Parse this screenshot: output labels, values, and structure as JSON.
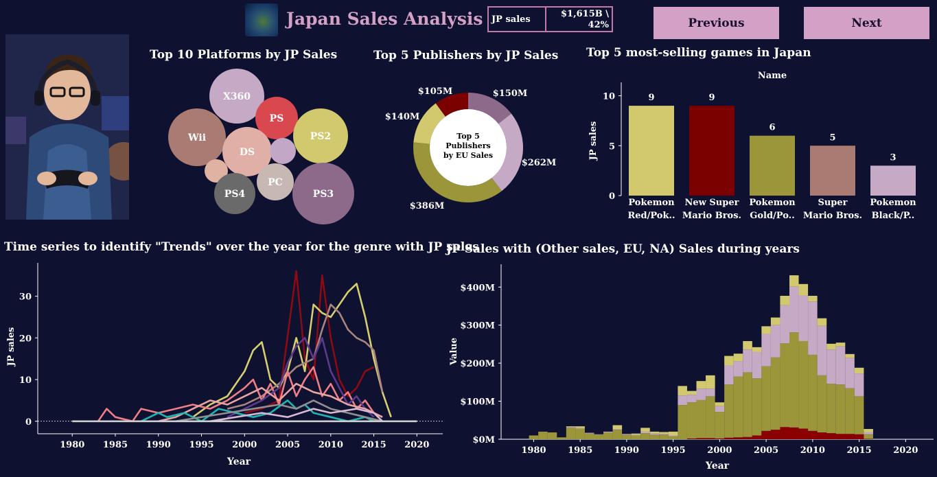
{
  "header": {
    "title": "Japan Sales Analysis",
    "kpi_label": "JP sales",
    "kpi_value_line1": "$1,615B \\",
    "kpi_value_line2": "42%",
    "prev_label": "Previous",
    "next_label": "Next"
  },
  "titles": {
    "platforms": "Top 10 Platforms by JP Sales",
    "publishers": "Top 5 Publishers by JP Sales",
    "games": "Top 5 most-selling games in Japan",
    "trends": "Time series to identify \"Trends\" over the year for the genre with JP sales",
    "yearly": "JP Sales with (Other sales, EU, NA) Sales during years"
  },
  "colors": {
    "background": "#0f1130",
    "button": "#d3a1c6",
    "kpi_border": "#c27aa8"
  },
  "chart_data": [
    {
      "id": "platforms",
      "type": "bubble",
      "items": [
        {
          "label": "X360",
          "color": "#c6a9c4"
        },
        {
          "label": "PS",
          "color": "#d9484f"
        },
        {
          "label": "Wii",
          "color": "#a97b73"
        },
        {
          "label": "DS",
          "color": "#e0b0a6"
        },
        {
          "label": "",
          "color": "#c3a7c7"
        },
        {
          "label": "PS2",
          "color": "#d2c96f"
        },
        {
          "label": "",
          "color": "#e0b2a2"
        },
        {
          "label": "PC",
          "color": "#c8b8b4"
        },
        {
          "label": "PS4",
          "color": "#6a6a6a"
        },
        {
          "label": "PS3",
          "color": "#8e6a8a"
        }
      ]
    },
    {
      "id": "publishers",
      "type": "donut",
      "center_text": [
        "Top 5",
        "Publishers",
        "by EU Sales"
      ],
      "slices": [
        {
          "value": 150,
          "label": "$150M",
          "color": "#8e6a8a"
        },
        {
          "value": 262,
          "label": "$262M",
          "color": "#c6a9c4"
        },
        {
          "value": 386,
          "label": "$386M",
          "color": "#9b963a"
        },
        {
          "value": 140,
          "label": "$140M",
          "color": "#d2c96f"
        },
        {
          "value": 105,
          "label": "$105M",
          "color": "#7b0000"
        }
      ]
    },
    {
      "id": "games",
      "type": "bar",
      "header": "Name",
      "ylabel": "JP sales",
      "ylim": [
        0,
        11
      ],
      "yticks": [
        0,
        5,
        10
      ],
      "categories": [
        [
          "Pokemon",
          "Red/Pok.."
        ],
        [
          "New Super",
          "Mario Bros."
        ],
        [
          "Pokemon",
          "Gold/Po.."
        ],
        [
          "Super",
          "Mario Bros."
        ],
        [
          "Pokemon",
          "Black/P.."
        ]
      ],
      "values": [
        9,
        9,
        6,
        5,
        3
      ],
      "colors": [
        "#d2c96f",
        "#7b0000",
        "#9b963a",
        "#a97b73",
        "#c6a9c4"
      ]
    },
    {
      "id": "trends",
      "type": "line",
      "xlabel": "Year",
      "ylabel": "JP sales",
      "xlim": [
        1976,
        2023
      ],
      "ylim": [
        -3,
        38
      ],
      "xticks": [
        1980,
        1985,
        1990,
        1995,
        2000,
        2005,
        2010,
        2015,
        2020
      ],
      "yticks": [
        0,
        10,
        20,
        30
      ],
      "series": [
        {
          "color": "#8b0a14",
          "points": [
            [
              2000,
              2
            ],
            [
              2002,
              3
            ],
            [
              2004,
              5
            ],
            [
              2006,
              36
            ],
            [
              2007,
              15
            ],
            [
              2008,
              10
            ],
            [
              2009,
              35
            ],
            [
              2010,
              20
            ],
            [
              2011,
              10
            ],
            [
              2012,
              6
            ],
            [
              2013,
              8
            ],
            [
              2014,
              12
            ],
            [
              2015,
              13
            ]
          ]
        },
        {
          "color": "#d6cf6f",
          "points": [
            [
              1994,
              1
            ],
            [
              1996,
              4
            ],
            [
              1998,
              6
            ],
            [
              2000,
              12
            ],
            [
              2001,
              17
            ],
            [
              2002,
              19
            ],
            [
              2003,
              10
            ],
            [
              2004,
              8
            ],
            [
              2005,
              12
            ],
            [
              2006,
              20
            ],
            [
              2007,
              12
            ],
            [
              2008,
              28
            ],
            [
              2009,
              26
            ],
            [
              2010,
              25
            ],
            [
              2011,
              28
            ],
            [
              2012,
              31
            ],
            [
              2013,
              33
            ],
            [
              2014,
              25
            ],
            [
              2015,
              15
            ],
            [
              2016,
              7
            ],
            [
              2017,
              1
            ]
          ]
        },
        {
          "color": "#a8857e",
          "points": [
            [
              1998,
              3
            ],
            [
              2000,
              4
            ],
            [
              2002,
              6
            ],
            [
              2004,
              9
            ],
            [
              2006,
              13
            ],
            [
              2008,
              15
            ],
            [
              2009,
              22
            ],
            [
              2010,
              28
            ],
            [
              2011,
              26
            ],
            [
              2012,
              22
            ],
            [
              2013,
              20
            ],
            [
              2014,
              19
            ],
            [
              2015,
              17
            ],
            [
              2016,
              7
            ]
          ]
        },
        {
          "color": "#ef7f86",
          "points": [
            [
              1983,
              0
            ],
            [
              1984,
              3
            ],
            [
              1985,
              1
            ],
            [
              1987,
              0
            ],
            [
              1988,
              3
            ],
            [
              1990,
              2
            ],
            [
              1992,
              3
            ],
            [
              1994,
              4
            ],
            [
              1996,
              3
            ],
            [
              1998,
              5
            ],
            [
              2000,
              8
            ],
            [
              2001,
              10
            ],
            [
              2002,
              5
            ],
            [
              2003,
              9
            ],
            [
              2004,
              4
            ],
            [
              2005,
              12
            ],
            [
              2006,
              6
            ],
            [
              2007,
              10
            ],
            [
              2008,
              13
            ],
            [
              2009,
              6
            ],
            [
              2010,
              9
            ],
            [
              2011,
              5
            ],
            [
              2012,
              7
            ],
            [
              2013,
              3
            ],
            [
              2014,
              5
            ],
            [
              2015,
              2
            ],
            [
              2016,
              1
            ]
          ]
        },
        {
          "color": "#5b3a8a",
          "points": [
            [
              1998,
              1
            ],
            [
              2000,
              3
            ],
            [
              2002,
              5
            ],
            [
              2004,
              8
            ],
            [
              2005,
              14
            ],
            [
              2006,
              18
            ],
            [
              2007,
              20
            ],
            [
              2008,
              15
            ],
            [
              2009,
              20
            ],
            [
              2010,
              12
            ],
            [
              2011,
              8
            ],
            [
              2012,
              4
            ],
            [
              2013,
              6
            ],
            [
              2014,
              3
            ],
            [
              2015,
              1
            ]
          ]
        },
        {
          "color": "#e9a3a0",
          "points": [
            [
              1990,
              0
            ],
            [
              1992,
              1
            ],
            [
              1994,
              3
            ],
            [
              1996,
              5
            ],
            [
              1998,
              4
            ],
            [
              2000,
              6
            ],
            [
              2002,
              8
            ],
            [
              2004,
              5
            ],
            [
              2006,
              9
            ],
            [
              2008,
              7
            ],
            [
              2010,
              6
            ],
            [
              2012,
              4
            ],
            [
              2014,
              3
            ],
            [
              2016,
              1
            ]
          ]
        },
        {
          "color": "#1fb5b0",
          "points": [
            [
              1988,
              0
            ],
            [
              1990,
              2
            ],
            [
              1991,
              1
            ],
            [
              1993,
              2
            ],
            [
              1995,
              0
            ],
            [
              1997,
              3
            ],
            [
              1999,
              2
            ],
            [
              2001,
              1
            ],
            [
              2003,
              2
            ],
            [
              2005,
              5
            ],
            [
              2006,
              3
            ],
            [
              2007,
              4
            ],
            [
              2008,
              2
            ],
            [
              2010,
              1
            ],
            [
              2012,
              0
            ],
            [
              2014,
              1
            ],
            [
              2015,
              0
            ]
          ]
        },
        {
          "color": "#8f8f8f",
          "points": [
            [
              1992,
              0
            ],
            [
              1995,
              1
            ],
            [
              1998,
              2
            ],
            [
              2001,
              3
            ],
            [
              2004,
              4
            ],
            [
              2006,
              3
            ],
            [
              2008,
              5
            ],
            [
              2010,
              3
            ],
            [
              2012,
              2
            ],
            [
              2014,
              1
            ],
            [
              2016,
              0
            ]
          ]
        },
        {
          "color": "#d7b9d5",
          "points": [
            [
              1996,
              0
            ],
            [
              1999,
              1
            ],
            [
              2002,
              2
            ],
            [
              2005,
              1
            ],
            [
              2008,
              3
            ],
            [
              2010,
              2
            ],
            [
              2013,
              3
            ],
            [
              2015,
              2
            ],
            [
              2016,
              0
            ]
          ]
        },
        {
          "color": "#cfcfcf",
          "points": [
            [
              1980,
              0
            ],
            [
              2020,
              0
            ]
          ]
        }
      ]
    },
    {
      "id": "yearly",
      "type": "bar",
      "stacked": true,
      "xlabel": "Year",
      "ylabel": "Value",
      "xlim": [
        1976.5,
        2023
      ],
      "ylim": [
        0,
        460
      ],
      "xticks": [
        1980,
        1985,
        1990,
        1995,
        2000,
        2005,
        2010,
        2015,
        2020
      ],
      "yticks": [
        0,
        100,
        200,
        300,
        400
      ],
      "ytick_labels": [
        "$0M",
        "$100M",
        "$200M",
        "$300M",
        "$400M"
      ],
      "years": [
        1980,
        1981,
        1982,
        1983,
        1984,
        1985,
        1986,
        1987,
        1988,
        1989,
        1990,
        1991,
        1992,
        1993,
        1994,
        1995,
        1996,
        1997,
        1998,
        1999,
        2000,
        2001,
        2002,
        2003,
        2004,
        2005,
        2006,
        2007,
        2008,
        2009,
        2010,
        2011,
        2012,
        2013,
        2014,
        2015,
        2016
      ],
      "series": [
        {
          "name": "JP",
          "color": "#8b0000",
          "values": [
            0,
            0,
            0,
            0,
            0,
            0,
            0,
            0,
            0,
            0,
            0,
            0,
            0,
            0,
            0,
            0,
            0,
            2,
            3,
            3,
            2,
            4,
            5,
            6,
            10,
            22,
            25,
            32,
            31,
            28,
            22,
            18,
            16,
            14,
            14,
            13,
            1
          ]
        },
        {
          "name": "Other",
          "color": "#9b963a",
          "values": [
            10,
            20,
            18,
            5,
            30,
            28,
            15,
            12,
            18,
            25,
            12,
            10,
            16,
            12,
            12,
            8,
            90,
            95,
            100,
            110,
            70,
            140,
            160,
            170,
            150,
            170,
            190,
            220,
            250,
            230,
            200,
            150,
            130,
            130,
            120,
            100,
            12
          ]
        },
        {
          "name": "EU",
          "color": "#c6a9c4",
          "values": [
            0,
            0,
            0,
            0,
            2,
            2,
            2,
            1,
            2,
            2,
            2,
            2,
            4,
            3,
            2,
            2,
            25,
            20,
            30,
            20,
            15,
            50,
            40,
            60,
            70,
            85,
            85,
            100,
            120,
            120,
            140,
            130,
            90,
            100,
            80,
            60,
            6
          ]
        },
        {
          "name": "NA",
          "color": "#d2c96f",
          "values": [
            0,
            0,
            0,
            0,
            2,
            4,
            0,
            0,
            0,
            10,
            0,
            3,
            10,
            5,
            5,
            10,
            25,
            10,
            20,
            35,
            10,
            25,
            20,
            22,
            12,
            20,
            20,
            25,
            30,
            30,
            15,
            20,
            15,
            10,
            10,
            15,
            8
          ]
        }
      ]
    }
  ]
}
